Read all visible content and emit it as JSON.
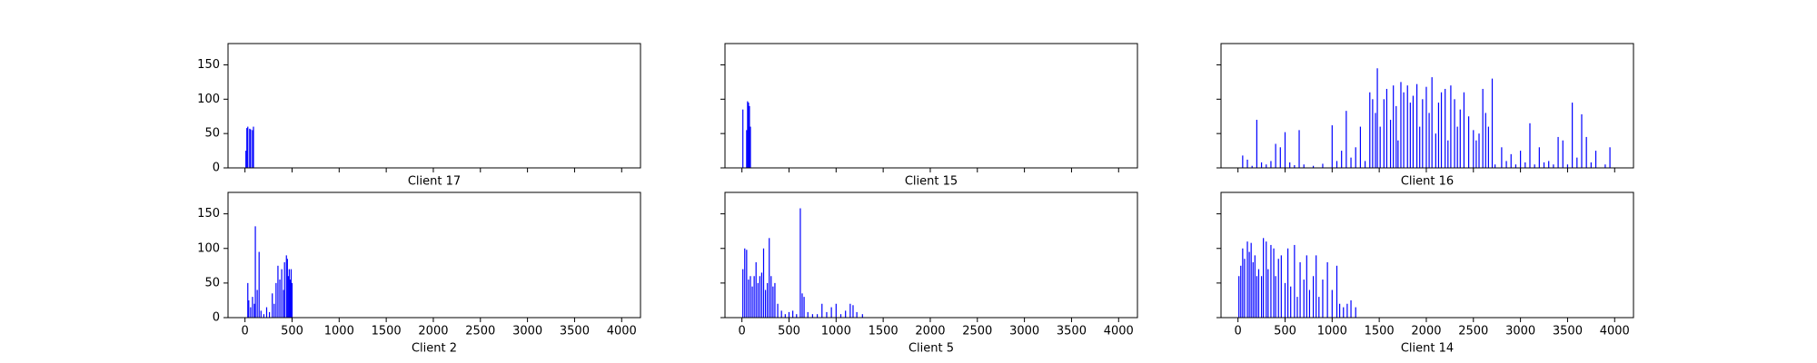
{
  "chart_data": [
    {
      "type": "bar",
      "xlabel": "Client 17",
      "color": "#0000ff",
      "x": [
        10,
        20,
        30,
        50,
        60,
        80,
        90
      ],
      "values": [
        25,
        58,
        60,
        57,
        56,
        55,
        60
      ],
      "xlim": [
        -180,
        4200
      ],
      "ylim": [
        0,
        181
      ],
      "xticks": [
        0,
        500,
        1000,
        1500,
        2000,
        2500,
        3000,
        3500,
        4000
      ],
      "yticks": [
        0,
        50,
        100,
        150
      ]
    },
    {
      "type": "bar",
      "xlabel": "Client 15",
      "color": "#0000ff",
      "x": [
        10,
        50,
        60,
        70,
        80,
        90
      ],
      "values": [
        85,
        55,
        97,
        95,
        90,
        60
      ],
      "xlim": [
        -180,
        4200
      ],
      "ylim": [
        0,
        181
      ],
      "xticks": [
        0,
        500,
        1000,
        1500,
        2000,
        2500,
        3000,
        3500,
        4000
      ],
      "yticks": [
        0,
        50,
        100,
        150
      ]
    },
    {
      "type": "bar",
      "xlabel": "Client 16",
      "color": "#0000ff",
      "x": [
        50,
        100,
        150,
        200,
        250,
        300,
        350,
        400,
        450,
        500,
        550,
        600,
        650,
        700,
        800,
        900,
        1000,
        1050,
        1100,
        1150,
        1200,
        1250,
        1300,
        1350,
        1400,
        1430,
        1460,
        1480,
        1510,
        1550,
        1580,
        1620,
        1650,
        1680,
        1700,
        1730,
        1760,
        1800,
        1830,
        1860,
        1900,
        1930,
        1960,
        2000,
        2030,
        2060,
        2100,
        2130,
        2160,
        2200,
        2230,
        2260,
        2300,
        2330,
        2360,
        2400,
        2450,
        2500,
        2530,
        2560,
        2600,
        2630,
        2660,
        2700,
        2730,
        2800,
        2850,
        2900,
        2950,
        3000,
        3050,
        3100,
        3150,
        3200,
        3250,
        3300,
        3350,
        3400,
        3450,
        3500,
        3550,
        3600,
        3650,
        3700,
        3750,
        3800,
        3900,
        3950
      ],
      "values": [
        18,
        12,
        3,
        70,
        8,
        5,
        10,
        35,
        30,
        52,
        8,
        4,
        55,
        5,
        3,
        6,
        62,
        10,
        25,
        83,
        15,
        30,
        60,
        10,
        110,
        100,
        80,
        145,
        60,
        100,
        115,
        70,
        120,
        90,
        40,
        125,
        110,
        120,
        95,
        105,
        122,
        60,
        100,
        118,
        80,
        132,
        50,
        95,
        110,
        115,
        40,
        120,
        100,
        60,
        85,
        110,
        75,
        55,
        40,
        50,
        115,
        80,
        60,
        130,
        5,
        30,
        10,
        20,
        5,
        25,
        8,
        65,
        5,
        30,
        8,
        10,
        5,
        45,
        40,
        5,
        95,
        15,
        78,
        45,
        8,
        25,
        5,
        30
      ],
      "xlim": [
        -180,
        4200
      ],
      "ylim": [
        0,
        181
      ],
      "xticks": [
        0,
        500,
        1000,
        1500,
        2000,
        2500,
        3000,
        3500,
        4000
      ],
      "yticks": [
        0,
        50,
        100,
        150
      ]
    },
    {
      "type": "bar",
      "xlabel": "Client 2",
      "color": "#0000ff",
      "x": [
        30,
        40,
        60,
        80,
        100,
        110,
        130,
        150,
        170,
        200,
        230,
        260,
        290,
        310,
        330,
        350,
        370,
        390,
        410,
        420,
        440,
        450,
        460,
        470,
        480,
        490,
        500
      ],
      "values": [
        50,
        25,
        15,
        30,
        20,
        132,
        40,
        95,
        10,
        5,
        15,
        8,
        35,
        20,
        50,
        75,
        55,
        70,
        40,
        80,
        90,
        85,
        60,
        70,
        55,
        70,
        50
      ],
      "xlim": [
        -180,
        4200
      ],
      "ylim": [
        0,
        181
      ],
      "xticks": [
        0,
        500,
        1000,
        1500,
        2000,
        2500,
        3000,
        3500,
        4000
      ],
      "yticks": [
        0,
        50,
        100,
        150
      ]
    },
    {
      "type": "bar",
      "xlabel": "Client 5",
      "color": "#0000ff",
      "x": [
        10,
        30,
        50,
        70,
        90,
        110,
        130,
        150,
        170,
        190,
        210,
        230,
        250,
        270,
        290,
        310,
        330,
        350,
        380,
        420,
        460,
        500,
        540,
        580,
        620,
        640,
        660,
        700,
        750,
        800,
        850,
        900,
        950,
        1000,
        1050,
        1100,
        1150,
        1180,
        1220,
        1280
      ],
      "values": [
        70,
        100,
        98,
        55,
        60,
        45,
        60,
        80,
        50,
        60,
        65,
        100,
        40,
        50,
        115,
        60,
        45,
        50,
        20,
        10,
        5,
        8,
        10,
        5,
        158,
        35,
        30,
        8,
        5,
        5,
        20,
        8,
        15,
        20,
        5,
        10,
        20,
        18,
        8,
        5
      ],
      "xlim": [
        -180,
        4200
      ],
      "ylim": [
        0,
        181
      ],
      "xticks": [
        0,
        500,
        1000,
        1500,
        2000,
        2500,
        3000,
        3500,
        4000
      ],
      "yticks": [
        0,
        50,
        100,
        150
      ]
    },
    {
      "type": "bar",
      "xlabel": "Client 14",
      "color": "#0000ff",
      "x": [
        10,
        30,
        50,
        70,
        100,
        120,
        140,
        160,
        180,
        200,
        220,
        250,
        270,
        300,
        320,
        350,
        380,
        400,
        430,
        460,
        500,
        530,
        560,
        600,
        630,
        660,
        700,
        730,
        760,
        800,
        830,
        860,
        900,
        950,
        1000,
        1050,
        1080,
        1120,
        1160,
        1200,
        1250
      ],
      "values": [
        60,
        75,
        100,
        85,
        110,
        95,
        108,
        80,
        90,
        60,
        70,
        60,
        115,
        110,
        70,
        105,
        100,
        60,
        85,
        90,
        50,
        100,
        45,
        105,
        30,
        80,
        55,
        90,
        40,
        60,
        90,
        30,
        55,
        80,
        40,
        75,
        20,
        15,
        20,
        25,
        15
      ],
      "xlim": [
        -180,
        4200
      ],
      "ylim": [
        0,
        181
      ],
      "xticks": [
        0,
        500,
        1000,
        1500,
        2000,
        2500,
        3000,
        3500,
        4000
      ],
      "yticks": [
        0,
        50,
        100,
        150
      ]
    }
  ]
}
